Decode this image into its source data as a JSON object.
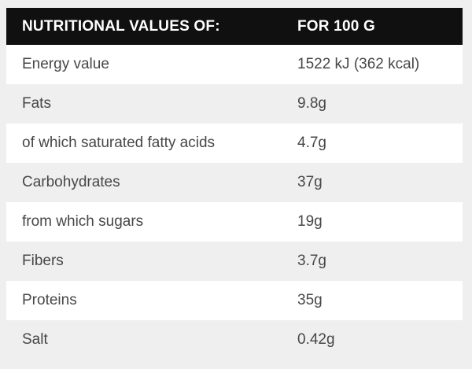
{
  "colors": {
    "canvas_bg": "#eeefee",
    "header_bg": "#101010",
    "header_text": "#ffffff",
    "row_white": "#ffffff",
    "row_gray": "#eeefee",
    "body_text": "#474747"
  },
  "table": {
    "header": {
      "label": "NUTRITIONAL VALUES OF:",
      "value": "FOR 100 G"
    },
    "rows": [
      {
        "label": "Energy value",
        "value": "1522 kJ (362 kcal)"
      },
      {
        "label": "Fats",
        "value": "9.8g"
      },
      {
        "label": "of which saturated fatty acids",
        "value": "4.7g"
      },
      {
        "label": "Carbohydrates",
        "value": "37g"
      },
      {
        "label": "from which sugars",
        "value": "19g"
      },
      {
        "label": "Fibers",
        "value": "3.7g"
      },
      {
        "label": "Proteins",
        "value": "35g"
      },
      {
        "label": "Salt",
        "value": "0.42g"
      }
    ]
  }
}
